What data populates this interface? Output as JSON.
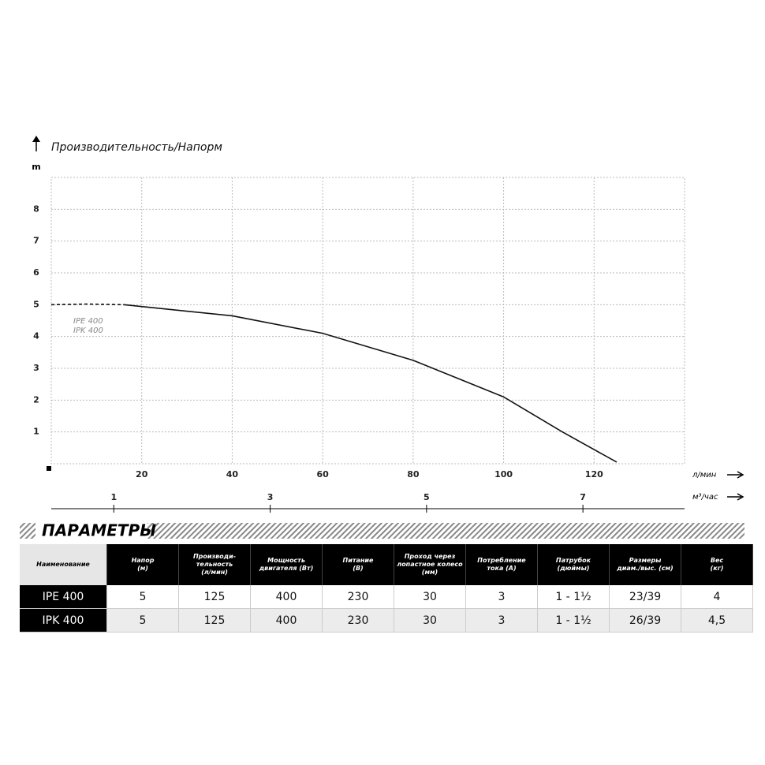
{
  "chart_data": {
    "type": "line",
    "title": "Производительность/Напорм",
    "y_label": "m",
    "x_label": "л/мин",
    "x2_label": "м³/час",
    "annotations": [
      "IPE 400",
      "IPK 400"
    ],
    "xlim": [
      0,
      140
    ],
    "xticks": [
      20,
      40,
      60,
      80,
      100,
      120
    ],
    "x2lim": [
      0.2,
      8.3
    ],
    "x2ticks": [
      1,
      3,
      5,
      7
    ],
    "ylim": [
      0,
      9
    ],
    "yticks": [
      1,
      2,
      3,
      4,
      5,
      6,
      7,
      8
    ],
    "grid": true,
    "series": [
      {
        "color": "#111111",
        "style": "dashed",
        "x": [
          0,
          8,
          16
        ],
        "values": [
          5,
          5.02,
          5
        ]
      },
      {
        "color": "#111111",
        "style": "solid",
        "x": [
          16,
          40,
          60,
          80,
          100,
          113,
          125
        ],
        "values": [
          5,
          4.65,
          4.1,
          3.25,
          2.1,
          1.0,
          0.05
        ]
      }
    ]
  },
  "table": {
    "title": "ПАРАМЕТРЫ",
    "header": [
      "Наименование",
      "Напор\n(м)",
      "Производи-\nтельность\n(л/мин)",
      "Мощность\nдвигателя (Вт)",
      "Питание\n(В)",
      "Проход через\nлопастное колесо\n(мм)",
      "Потребление\nтока (А)",
      "Патрубок\n(дюймы)",
      "Размеры\nдиам./выс. (см)",
      "Вес\n(кг)"
    ],
    "rows": [
      [
        "IPE 400",
        "5",
        "125",
        "400",
        "230",
        "30",
        "3",
        "1 - 1½",
        "23/39",
        "4"
      ],
      [
        "IPK 400",
        "5",
        "125",
        "400",
        "230",
        "30",
        "3",
        "1 - 1½",
        "26/39",
        "4,5"
      ]
    ]
  }
}
